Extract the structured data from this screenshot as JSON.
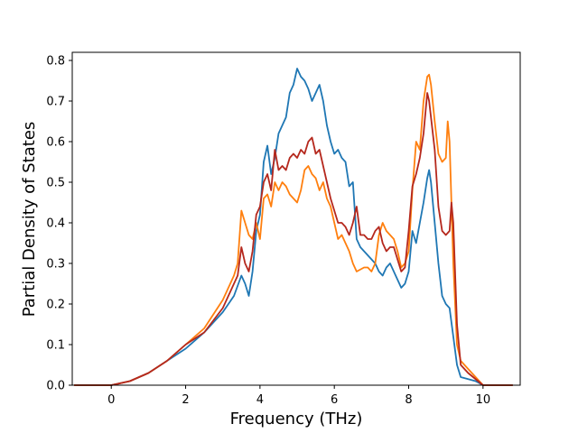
{
  "chart_data": {
    "type": "line",
    "xlabel": "Frequency (THz)",
    "ylabel": "Partial Density of States",
    "xlim": [
      -1.05,
      11.0
    ],
    "ylim": [
      0.0,
      0.82
    ],
    "x_ticks": [
      0,
      2,
      4,
      6,
      8,
      10
    ],
    "y_ticks": [
      0.0,
      0.1,
      0.2,
      0.3,
      0.4,
      0.5,
      0.6,
      0.7,
      0.8
    ],
    "x_tick_labels": [
      "0",
      "2",
      "4",
      "6",
      "8",
      "10"
    ],
    "y_tick_labels": [
      "0.0",
      "0.1",
      "0.2",
      "0.3",
      "0.4",
      "0.5",
      "0.6",
      "0.7",
      "0.8"
    ],
    "grid": false,
    "legend": "none",
    "series": [
      {
        "color": "#1f77b4",
        "points": [
          [
            -1.0,
            0.0
          ],
          [
            0.0,
            0.0
          ],
          [
            0.5,
            0.01
          ],
          [
            1.0,
            0.03
          ],
          [
            1.5,
            0.06
          ],
          [
            2.0,
            0.09
          ],
          [
            2.5,
            0.13
          ],
          [
            3.0,
            0.18
          ],
          [
            3.3,
            0.22
          ],
          [
            3.5,
            0.27
          ],
          [
            3.6,
            0.25
          ],
          [
            3.7,
            0.22
          ],
          [
            3.8,
            0.28
          ],
          [
            3.9,
            0.38
          ],
          [
            4.0,
            0.42
          ],
          [
            4.1,
            0.55
          ],
          [
            4.2,
            0.59
          ],
          [
            4.3,
            0.52
          ],
          [
            4.4,
            0.56
          ],
          [
            4.5,
            0.62
          ],
          [
            4.6,
            0.64
          ],
          [
            4.7,
            0.66
          ],
          [
            4.8,
            0.72
          ],
          [
            4.9,
            0.74
          ],
          [
            5.0,
            0.78
          ],
          [
            5.1,
            0.76
          ],
          [
            5.2,
            0.75
          ],
          [
            5.3,
            0.73
          ],
          [
            5.4,
            0.7
          ],
          [
            5.5,
            0.72
          ],
          [
            5.6,
            0.74
          ],
          [
            5.7,
            0.7
          ],
          [
            5.8,
            0.64
          ],
          [
            5.9,
            0.6
          ],
          [
            6.0,
            0.57
          ],
          [
            6.1,
            0.58
          ],
          [
            6.2,
            0.56
          ],
          [
            6.3,
            0.55
          ],
          [
            6.4,
            0.49
          ],
          [
            6.5,
            0.5
          ],
          [
            6.6,
            0.36
          ],
          [
            6.7,
            0.34
          ],
          [
            6.8,
            0.33
          ],
          [
            6.9,
            0.32
          ],
          [
            7.0,
            0.31
          ],
          [
            7.1,
            0.3
          ],
          [
            7.2,
            0.28
          ],
          [
            7.3,
            0.27
          ],
          [
            7.4,
            0.29
          ],
          [
            7.5,
            0.3
          ],
          [
            7.6,
            0.28
          ],
          [
            7.7,
            0.26
          ],
          [
            7.8,
            0.24
          ],
          [
            7.9,
            0.25
          ],
          [
            8.0,
            0.28
          ],
          [
            8.1,
            0.38
          ],
          [
            8.2,
            0.35
          ],
          [
            8.3,
            0.4
          ],
          [
            8.4,
            0.45
          ],
          [
            8.5,
            0.51
          ],
          [
            8.55,
            0.53
          ],
          [
            8.6,
            0.5
          ],
          [
            8.7,
            0.4
          ],
          [
            8.8,
            0.3
          ],
          [
            8.9,
            0.22
          ],
          [
            9.0,
            0.2
          ],
          [
            9.1,
            0.19
          ],
          [
            9.2,
            0.12
          ],
          [
            9.3,
            0.05
          ],
          [
            9.4,
            0.02
          ],
          [
            9.6,
            0.015
          ],
          [
            9.8,
            0.01
          ],
          [
            10.0,
            0.0
          ],
          [
            10.8,
            0.0
          ]
        ]
      },
      {
        "color": "#ff7f0e",
        "points": [
          [
            -1.0,
            0.0
          ],
          [
            0.0,
            0.0
          ],
          [
            0.5,
            0.01
          ],
          [
            1.0,
            0.03
          ],
          [
            1.5,
            0.06
          ],
          [
            2.0,
            0.1
          ],
          [
            2.5,
            0.14
          ],
          [
            3.0,
            0.21
          ],
          [
            3.3,
            0.27
          ],
          [
            3.4,
            0.3
          ],
          [
            3.5,
            0.43
          ],
          [
            3.6,
            0.4
          ],
          [
            3.7,
            0.37
          ],
          [
            3.8,
            0.36
          ],
          [
            3.9,
            0.4
          ],
          [
            4.0,
            0.36
          ],
          [
            4.1,
            0.46
          ],
          [
            4.2,
            0.47
          ],
          [
            4.3,
            0.44
          ],
          [
            4.4,
            0.5
          ],
          [
            4.5,
            0.48
          ],
          [
            4.6,
            0.5
          ],
          [
            4.7,
            0.49
          ],
          [
            4.8,
            0.47
          ],
          [
            4.9,
            0.46
          ],
          [
            5.0,
            0.45
          ],
          [
            5.1,
            0.48
          ],
          [
            5.2,
            0.53
          ],
          [
            5.3,
            0.54
          ],
          [
            5.4,
            0.52
          ],
          [
            5.5,
            0.51
          ],
          [
            5.6,
            0.48
          ],
          [
            5.7,
            0.5
          ],
          [
            5.8,
            0.46
          ],
          [
            5.9,
            0.44
          ],
          [
            6.0,
            0.4
          ],
          [
            6.1,
            0.36
          ],
          [
            6.2,
            0.37
          ],
          [
            6.3,
            0.35
          ],
          [
            6.4,
            0.33
          ],
          [
            6.5,
            0.3
          ],
          [
            6.6,
            0.28
          ],
          [
            6.7,
            0.285
          ],
          [
            6.8,
            0.29
          ],
          [
            6.9,
            0.29
          ],
          [
            7.0,
            0.28
          ],
          [
            7.1,
            0.3
          ],
          [
            7.2,
            0.37
          ],
          [
            7.3,
            0.4
          ],
          [
            7.4,
            0.38
          ],
          [
            7.5,
            0.37
          ],
          [
            7.6,
            0.36
          ],
          [
            7.7,
            0.33
          ],
          [
            7.8,
            0.29
          ],
          [
            7.9,
            0.3
          ],
          [
            8.0,
            0.33
          ],
          [
            8.1,
            0.48
          ],
          [
            8.2,
            0.6
          ],
          [
            8.3,
            0.58
          ],
          [
            8.4,
            0.7
          ],
          [
            8.5,
            0.76
          ],
          [
            8.55,
            0.765
          ],
          [
            8.6,
            0.74
          ],
          [
            8.7,
            0.65
          ],
          [
            8.8,
            0.57
          ],
          [
            8.9,
            0.55
          ],
          [
            9.0,
            0.56
          ],
          [
            9.05,
            0.65
          ],
          [
            9.1,
            0.6
          ],
          [
            9.2,
            0.3
          ],
          [
            9.3,
            0.1
          ],
          [
            9.4,
            0.06
          ],
          [
            9.6,
            0.04
          ],
          [
            9.8,
            0.02
          ],
          [
            10.0,
            0.0
          ],
          [
            10.8,
            0.0
          ]
        ]
      },
      {
        "color": "#b5281d",
        "points": [
          [
            -1.0,
            0.0
          ],
          [
            0.0,
            0.0
          ],
          [
            0.5,
            0.01
          ],
          [
            1.0,
            0.03
          ],
          [
            1.5,
            0.06
          ],
          [
            2.0,
            0.1
          ],
          [
            2.5,
            0.13
          ],
          [
            3.0,
            0.19
          ],
          [
            3.3,
            0.25
          ],
          [
            3.4,
            0.27
          ],
          [
            3.5,
            0.34
          ],
          [
            3.6,
            0.3
          ],
          [
            3.7,
            0.28
          ],
          [
            3.8,
            0.33
          ],
          [
            3.9,
            0.42
          ],
          [
            4.0,
            0.44
          ],
          [
            4.1,
            0.5
          ],
          [
            4.2,
            0.52
          ],
          [
            4.3,
            0.48
          ],
          [
            4.4,
            0.58
          ],
          [
            4.5,
            0.53
          ],
          [
            4.6,
            0.54
          ],
          [
            4.7,
            0.53
          ],
          [
            4.8,
            0.56
          ],
          [
            4.9,
            0.57
          ],
          [
            5.0,
            0.56
          ],
          [
            5.1,
            0.58
          ],
          [
            5.2,
            0.57
          ],
          [
            5.3,
            0.6
          ],
          [
            5.4,
            0.61
          ],
          [
            5.5,
            0.57
          ],
          [
            5.6,
            0.58
          ],
          [
            5.7,
            0.54
          ],
          [
            5.8,
            0.5
          ],
          [
            5.9,
            0.46
          ],
          [
            6.0,
            0.43
          ],
          [
            6.1,
            0.4
          ],
          [
            6.2,
            0.4
          ],
          [
            6.3,
            0.39
          ],
          [
            6.4,
            0.37
          ],
          [
            6.5,
            0.4
          ],
          [
            6.6,
            0.44
          ],
          [
            6.7,
            0.37
          ],
          [
            6.8,
            0.37
          ],
          [
            6.9,
            0.36
          ],
          [
            7.0,
            0.36
          ],
          [
            7.1,
            0.38
          ],
          [
            7.2,
            0.39
          ],
          [
            7.3,
            0.35
          ],
          [
            7.4,
            0.33
          ],
          [
            7.5,
            0.34
          ],
          [
            7.6,
            0.34
          ],
          [
            7.7,
            0.31
          ],
          [
            7.8,
            0.28
          ],
          [
            7.9,
            0.29
          ],
          [
            8.0,
            0.38
          ],
          [
            8.1,
            0.49
          ],
          [
            8.2,
            0.52
          ],
          [
            8.3,
            0.56
          ],
          [
            8.4,
            0.62
          ],
          [
            8.5,
            0.72
          ],
          [
            8.55,
            0.7
          ],
          [
            8.6,
            0.66
          ],
          [
            8.7,
            0.58
          ],
          [
            8.8,
            0.44
          ],
          [
            8.9,
            0.38
          ],
          [
            9.0,
            0.37
          ],
          [
            9.1,
            0.38
          ],
          [
            9.15,
            0.45
          ],
          [
            9.2,
            0.4
          ],
          [
            9.3,
            0.15
          ],
          [
            9.4,
            0.05
          ],
          [
            9.6,
            0.03
          ],
          [
            9.8,
            0.015
          ],
          [
            10.0,
            0.0
          ],
          [
            10.8,
            0.0
          ]
        ]
      }
    ]
  }
}
